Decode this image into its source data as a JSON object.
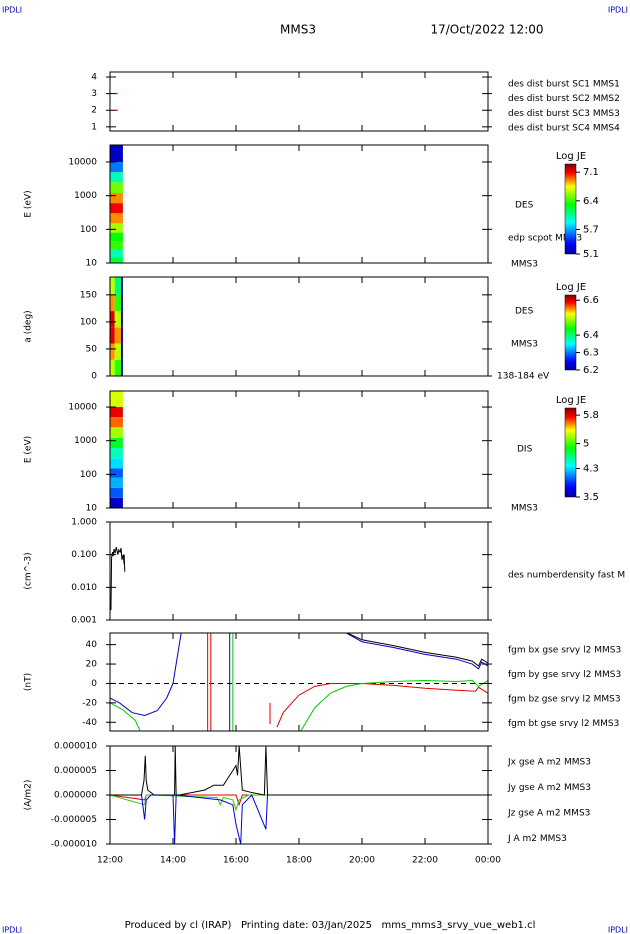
{
  "header": {
    "left": "IPDLI",
    "right": "IPDLI",
    "title": "MMS3",
    "date": "17/Oct/2022 12:00"
  },
  "footer": {
    "text": "Produced by cl (IRAP)   Printing date: 03/Jan/2025   mms_mms3_srvy_vue_web1.cl",
    "left": "IPDLI",
    "right": "IPDLI"
  },
  "chart_data": [
    {
      "type": "scatter",
      "xlim": [
        0,
        12
      ],
      "ylim": [
        0.75,
        4.3
      ],
      "yticks": [
        1,
        2,
        3,
        4
      ],
      "series": [
        {
          "name": "des dist burst SC1 MMS1",
          "color": "#0000ff",
          "x": [],
          "values": []
        },
        {
          "name": "des dist burst SC2 MMS2",
          "color": "#ff00ff",
          "x": [
            0.22
          ],
          "values": [
            3
          ]
        },
        {
          "name": "des dist burst SC3 MMS3",
          "color": "#ff0000",
          "x": [
            0.22
          ],
          "values": [
            2
          ]
        },
        {
          "name": "des dist burst SC4 MMS4",
          "color": "#00cc00",
          "x": [],
          "values": []
        }
      ]
    },
    {
      "type": "heatmap",
      "ylabel": "E (eV)",
      "ylog": true,
      "xlim": [
        0,
        12
      ],
      "ylim": [
        10,
        32000
      ],
      "yticks": [
        10,
        100,
        1000,
        10000
      ],
      "x_bins": [
        0,
        0.41
      ],
      "y_bins": [
        10,
        15,
        25,
        45,
        80,
        150,
        300,
        600,
        1200,
        2500,
        5000,
        10000,
        32000
      ],
      "values": [
        [
          6.2,
          6.0,
          6.4,
          6.3,
          6.6,
          6.9,
          7.1,
          6.9,
          6.5,
          6.0,
          5.6,
          5.2
        ]
      ],
      "colorbar_label": "Log JE",
      "clim": [
        5.1,
        7.3
      ],
      "cticks": [
        7.1,
        6.4,
        5.7,
        5.1
      ],
      "annotations": [
        "DES",
        "edp scpot MMS3",
        "MMS3"
      ]
    },
    {
      "type": "heatmap",
      "ylabel": "a (deg)",
      "xlim": [
        0,
        12
      ],
      "ylim": [
        0,
        183
      ],
      "yticks": [
        0,
        50,
        100,
        150
      ],
      "x_bins": [
        0,
        0.15,
        0.35,
        0.41
      ],
      "y_bins": [
        0,
        30,
        60,
        90,
        120,
        150,
        183
      ],
      "values": [
        [
          6.5,
          6.55,
          6.6,
          6.6,
          6.55,
          6.5
        ],
        [
          6.45,
          6.5,
          6.55,
          6.5,
          6.45,
          6.4
        ],
        [
          6.2,
          6.2,
          6.2,
          6.2,
          6.2,
          6.2
        ]
      ],
      "colorbar_label": "Log JE",
      "clim": [
        6.2,
        6.63
      ],
      "cticks": [
        6.6,
        6.4,
        6.3,
        6.2
      ],
      "annotations": [
        "DES",
        "MMS3",
        "138-184 eV"
      ]
    },
    {
      "type": "heatmap",
      "ylabel": "E (eV)",
      "ylog": true,
      "xlim": [
        0,
        12
      ],
      "ylim": [
        10,
        30000
      ],
      "yticks": [
        10,
        100,
        1000,
        10000
      ],
      "x_bins": [
        0,
        0.41
      ],
      "y_bins": [
        10,
        20,
        40,
        80,
        150,
        300,
        600,
        1200,
        2500,
        5000,
        10000,
        30000
      ],
      "values": [
        [
          3.6,
          4.0,
          4.2,
          4.0,
          4.3,
          4.5,
          4.8,
          5.2,
          5.6,
          5.8,
          5.3
        ]
      ],
      "colorbar_label": "Log JE",
      "clim": [
        3.5,
        6.0
      ],
      "cticks": [
        5.8,
        5.0,
        4.3,
        3.5
      ],
      "annotations": [
        "DIS",
        "MMS3"
      ]
    },
    {
      "type": "line",
      "ylabel": "(cm^-3)",
      "ylog": true,
      "xlim": [
        0,
        12
      ],
      "ylim": [
        0.001,
        1
      ],
      "yticks": [
        {
          "value": 0.001,
          "label": "0.001"
        },
        {
          "value": 0.01,
          "label": "0.010"
        },
        {
          "value": 0.1,
          "label": "0.100"
        },
        {
          "value": 1,
          "label": "1.000"
        }
      ],
      "series": [
        {
          "name": "des numberdensity fast M",
          "color": "#000000",
          "x": [
            0.03,
            0.05,
            0.08,
            0.1,
            0.13,
            0.16,
            0.2,
            0.25,
            0.28,
            0.32,
            0.35,
            0.38,
            0.42,
            0.45,
            0.45,
            0.47
          ],
          "values": [
            0.002,
            0.08,
            0.12,
            0.09,
            0.15,
            0.11,
            0.17,
            0.1,
            0.14,
            0.12,
            0.16,
            0.07,
            0.1,
            0.05,
            0.1,
            0.03
          ]
        }
      ]
    },
    {
      "type": "line",
      "ylabel": "(nT)",
      "xlim": [
        0,
        12
      ],
      "ylim": [
        -49,
        52
      ],
      "yticks": [
        -40,
        -20,
        0,
        20,
        40
      ],
      "reference_line": 0,
      "series": [
        {
          "name": "fgm bx gse srvy l2 MMS3",
          "color": "#e00000",
          "x": [
            3.1,
            3.1,
            3.15,
            3.2,
            3.2,
            3.25,
            5.08,
            5.08,
            5.1,
            5.3,
            5.5,
            6,
            6.5,
            7,
            8,
            9,
            10,
            11,
            11.6,
            11.7,
            12
          ],
          "values": [
            -60,
            60,
            null,
            60,
            -60,
            null,
            -20,
            -42,
            null,
            -45,
            -30,
            -12,
            -3,
            0,
            0,
            -2,
            -5,
            -7,
            -8,
            -4,
            -10
          ]
        },
        {
          "name": "fgm by gse srvy l2 MMS3",
          "color": "#00cc00",
          "x": [
            0,
            0.4,
            0.8,
            1.0,
            1.05,
            3.9,
            3.9,
            3.95,
            6.0,
            6.5,
            7,
            7.5,
            8,
            9,
            10,
            11,
            11.5,
            11.7,
            12
          ],
          "values": [
            -20,
            -27,
            -38,
            -52,
            null,
            60,
            -60,
            null,
            -52,
            -25,
            -10,
            -3,
            0,
            2,
            3,
            2,
            3,
            -3,
            3
          ]
        },
        {
          "name": "fgm bz gse srvy l2 MMS3",
          "color": "#0000c0",
          "x": [
            0,
            0.3,
            0.7,
            1.1,
            1.5,
            1.8,
            2.0,
            2.15,
            2.3,
            2.3,
            3.8,
            3.8,
            3.85,
            7.5,
            8,
            9,
            10,
            11,
            11.5,
            11.7,
            11.8,
            12
          ],
          "values": [
            -15,
            -20,
            -30,
            -33,
            -28,
            -15,
            0,
            30,
            60,
            null,
            60,
            -60,
            null,
            52,
            43,
            37,
            30,
            25,
            20,
            15,
            22,
            18
          ]
        },
        {
          "name": "fgm bt gse srvy l2 MMS3",
          "color": "#000000",
          "x": [
            7.4,
            8,
            9,
            10,
            11,
            11.5,
            11.7,
            11.8,
            12
          ],
          "values": [
            54,
            45,
            39,
            32,
            27,
            23,
            18,
            25,
            21
          ]
        }
      ]
    },
    {
      "type": "line",
      "ylabel": "(A/m2)",
      "xlim": [
        0,
        12
      ],
      "ylim": [
        -1e-05,
        1e-05
      ],
      "yticks": [
        {
          "value": -1e-05,
          "label": "-0.000010"
        },
        {
          "value": -5e-06,
          "label": "-0.000005"
        },
        {
          "value": 0,
          "label": "0.000000"
        },
        {
          "value": 5e-06,
          "label": "0.000005"
        },
        {
          "value": 1e-05,
          "label": "0.000010"
        }
      ],
      "xticks": [
        {
          "value": 0,
          "label": "12:00"
        },
        {
          "value": 2,
          "label": "14:00"
        },
        {
          "value": 4,
          "label": "16:00"
        },
        {
          "value": 6,
          "label": "18:00"
        },
        {
          "value": 8,
          "label": "20:00"
        },
        {
          "value": 10,
          "label": "22:00"
        },
        {
          "value": 12,
          "label": "00:00"
        }
      ],
      "series": [
        {
          "name": "Jx gse A m2 MMS3",
          "color": "#e00000",
          "x": [
            0,
            1.1,
            1.15,
            4.0,
            4.1,
            4.2,
            12
          ],
          "values": [
            0,
            -1e-06,
            0,
            0,
            -2e-06,
            0,
            0
          ]
        },
        {
          "name": "Jy gse A m2 MMS3",
          "color": "#33cc00",
          "x": [
            0,
            1.1,
            1.15,
            1.3,
            3.4,
            3.5,
            3.6,
            3.9,
            4.0,
            4.1,
            4.4,
            12
          ],
          "values": [
            0,
            -2e-06,
            0,
            0,
            -5e-07,
            -2e-06,
            -5e-07,
            -1e-06,
            -3e-06,
            -1e-06,
            0,
            0
          ]
        },
        {
          "name": "Jz gse A m2 MMS3",
          "color": "#0000e0",
          "x": [
            0,
            1.0,
            1.1,
            1.15,
            1.3,
            2.0,
            2.05,
            2.1,
            3.5,
            3.9,
            4.0,
            4.15,
            4.2,
            4.5,
            4.95,
            5.0,
            5.05,
            12
          ],
          "values": [
            0,
            0,
            -5e-06,
            -1e-06,
            0,
            0,
            -1e-05,
            0,
            -1e-06,
            -2e-06,
            -6e-06,
            -1e-05,
            -2e-06,
            0,
            -7e-06,
            0,
            0,
            0
          ]
        },
        {
          "name": "J A m2 MMS3",
          "color": "#000000",
          "x": [
            0,
            1.0,
            1.08,
            1.12,
            1.15,
            1.2,
            1.4,
            2.05,
            2.07,
            2.1,
            2.2,
            3.0,
            3.3,
            3.6,
            3.8,
            4.0,
            4.05,
            4.1,
            4.2,
            4.5,
            4.9,
            4.95,
            5.0,
            6,
            8,
            12
          ],
          "values": [
            0,
            0,
            3e-06,
            8e-06,
            3e-06,
            1e-06,
            0,
            0,
            1e-05,
            0,
            0,
            1e-06,
            2e-06,
            2e-06,
            4e-06,
            6e-06,
            4e-06,
            1e-05,
            1e-06,
            5e-07,
            0,
            1e-05,
            0,
            0,
            0,
            0
          ]
        }
      ]
    }
  ]
}
